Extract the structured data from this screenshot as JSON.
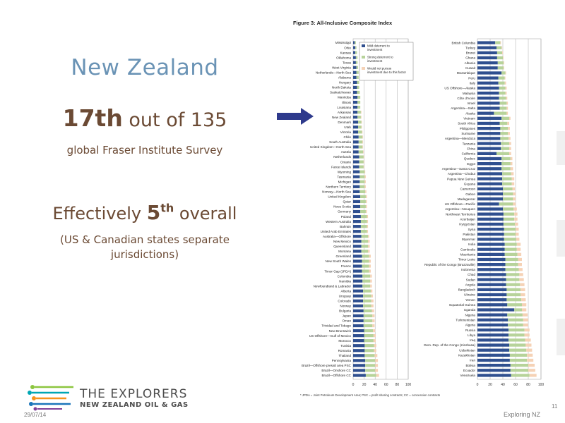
{
  "slide": {
    "title": "New Zealand",
    "rank_bold": "17th",
    "rank_rest": " out of 135",
    "survey": "global Fraser Institute Survey",
    "eff_pre": "Effectively ",
    "eff_num": "5",
    "eff_sup": "th",
    "eff_post": " overall",
    "note1": "(US & Canadian states separate",
    "note2": "jurisdictions)",
    "brand_line1": "THE EXPLORERS",
    "brand_line2": "NEW ZEALAND OIL & GAS",
    "date": "29/07/14",
    "footer": "Exploring NZ",
    "page_number": "11"
  },
  "colors": {
    "title": "#6a93b5",
    "body_text": "#6b4a34",
    "arrow": "#2e3a8c",
    "mild": "#2f4f8f",
    "strong": "#b7d39a",
    "would_not": "#f5d2b6"
  },
  "chart_data": {
    "type": "bar",
    "orientation": "horizontal",
    "stacked": true,
    "title": "Figure 3: All-Inclusive Composite Index",
    "legend": [
      "Mild deterrent to investment",
      "Strong deterrent to investment",
      "Would not pursue investment due to this factor"
    ],
    "legend_position": "top-right",
    "xlim": [
      0,
      100
    ],
    "xticks": [
      "0",
      "20",
      "40",
      "60",
      "80",
      "100"
    ],
    "footnote": "* JPDA = Joint Petroleum Development Area; PSC = profit sharing contracts; CC = concession contracts",
    "panels": [
      {
        "categories": [
          "Mississippi",
          "Ohio",
          "Kansas",
          "Oklahoma",
          "Texas",
          "West Virginia",
          "Netherlands—North Sea",
          "Alabama",
          "Hungary",
          "North Dakota",
          "Saskatchewan",
          "Manitoba",
          "Illinois",
          "Louisiana",
          "Arkansas",
          "New Zealand",
          "Denmark",
          "Utah",
          "Victoria",
          "Chile",
          "South Australia",
          "United Kingdom—North Sea",
          "Austria",
          "Netherlands",
          "Ontario",
          "Faroe Islands",
          "Wyoming",
          "Tasmania",
          "Michigan",
          "Northern Territory",
          "Norway—North Sea",
          "United Kingdom",
          "Qatar",
          "Nova Scotia",
          "Germany",
          "Poland",
          "Western Australia",
          "Bahrain",
          "United Arab Emirates",
          "Australia—Offshore",
          "New Mexico",
          "Queensland",
          "Montana",
          "Greenland",
          "New South Wales",
          "France",
          "Timor Gap (JPDA)",
          "Colombia",
          "Namibia",
          "Newfoundland & Labrador",
          "Alberta",
          "Uruguay",
          "Colorado",
          "Norway",
          "Bulgaria",
          "Japan",
          "Oman",
          "Trinidad and Tobago",
          "New Brunswick",
          "US Offshore—Gulf of Mexico",
          "Morocco",
          "Tunisia",
          "Romania",
          "Thailand",
          "Pennsylvania",
          "Brazil—Offshore presalt area PSC",
          "Brazil—Onshore CC",
          "Brazil—Offshore CC"
        ],
        "series": [
          {
            "name": "Mild deterrent to investment",
            "values": [
              3,
              4,
              4,
              5,
              5,
              6,
              6,
              6,
              7,
              7,
              7,
              8,
              8,
              8,
              8,
              8,
              9,
              9,
              9,
              10,
              10,
              10,
              10,
              11,
              11,
              11,
              12,
              12,
              12,
              12,
              12,
              13,
              13,
              13,
              13,
              14,
              14,
              14,
              14,
              15,
              15,
              15,
              15,
              16,
              16,
              16,
              16,
              17,
              17,
              17,
              18,
              18,
              18,
              18,
              19,
              19,
              19,
              19,
              20,
              20,
              20,
              21,
              21,
              21,
              22,
              22,
              22,
              23
            ]
          },
          {
            "name": "Strong deterrent to investment",
            "values": [
              2,
              2,
              3,
              3,
              3,
              3,
              4,
              4,
              4,
              4,
              5,
              5,
              5,
              5,
              6,
              6,
              6,
              6,
              7,
              7,
              7,
              7,
              8,
              8,
              8,
              8,
              9,
              9,
              9,
              9,
              10,
              10,
              10,
              10,
              10,
              11,
              11,
              11,
              11,
              12,
              12,
              12,
              12,
              13,
              13,
              13,
              13,
              14,
              14,
              14,
              14,
              15,
              15,
              15,
              15,
              16,
              16,
              16,
              16,
              17,
              17,
              17,
              17,
              18,
              18,
              18,
              18,
              19
            ]
          },
          {
            "name": "Would not pursue investment due to this factor",
            "values": [
              0,
              0,
              0,
              0,
              0,
              0,
              0,
              0,
              0,
              0,
              0,
              0,
              0,
              0,
              1,
              1,
              1,
              1,
              1,
              1,
              1,
              1,
              1,
              1,
              1,
              1,
              1,
              2,
              2,
              2,
              2,
              2,
              2,
              2,
              2,
              2,
              2,
              2,
              2,
              2,
              3,
              3,
              3,
              3,
              3,
              3,
              3,
              3,
              3,
              3,
              3,
              3,
              4,
              4,
              4,
              4,
              4,
              4,
              4,
              4,
              4,
              4,
              4,
              5,
              5,
              5,
              5,
              5
            ]
          }
        ]
      },
      {
        "categories": [
          "British Columbia",
          "Turkey",
          "Brunei",
          "Ghana",
          "Albania",
          "Kuwait",
          "Mozambique",
          "Peru",
          "Italy",
          "US Offshore—Alaska",
          "Malaysia",
          "Côte d'Ivoire",
          "Israel",
          "Argentina—Salta",
          "Alaska",
          "Vietnam",
          "South Africa",
          "Philippines",
          "Suriname",
          "Argentina—Mendoza",
          "Tanzania",
          "China",
          "California",
          "Quebec",
          "Egypt",
          "Argentina—Santa Cruz",
          "Argentina—Chubut",
          "Papua New Guinea",
          "Guyana",
          "Cameroon",
          "Gabon",
          "Madagascar",
          "US Offshore—Pacific",
          "Argentina—Neuquen",
          "Northwest Territories",
          "Azerbaijan",
          "Kyrgyzstan",
          "Syria",
          "Pakistan",
          "Myanmar",
          "India",
          "Cambodia",
          "Mauritania",
          "Timor Leste",
          "Republic of the Congo (Brazzaville)",
          "Indonesia",
          "Chad",
          "Sudan",
          "Angola",
          "Bangladesh",
          "Ukraine",
          "Yemen",
          "Equatorial Guinea",
          "Uganda",
          "Nigeria",
          "Turkmenistan",
          "Algeria",
          "Russia",
          "Libya",
          "Iraq",
          "Dem. Rep. of the Congo (Kinshasa)",
          "Uzbekistan",
          "Kazakhstan",
          "Iran",
          "Bolivia",
          "Ecuador",
          "Venezuela"
        ],
        "series": [
          {
            "name": "Mild deterrent to investment",
            "values": [
              28,
              30,
              31,
              31,
              32,
              32,
              38,
              33,
              33,
              34,
              34,
              34,
              35,
              35,
              26,
              38,
              35,
              36,
              36,
              36,
              37,
              37,
              30,
              38,
              38,
              38,
              39,
              39,
              39,
              40,
              40,
              40,
              34,
              40,
              41,
              41,
              41,
              42,
              42,
              42,
              43,
              43,
              43,
              44,
              44,
              44,
              45,
              45,
              45,
              46,
              46,
              46,
              47,
              58,
              47,
              48,
              48,
              49,
              49,
              49,
              50,
              50,
              51,
              51,
              52,
              52,
              53
            ]
          },
          {
            "name": "Strong deterrent to investment",
            "values": [
              8,
              8,
              8,
              9,
              9,
              9,
              6,
              10,
              10,
              10,
              10,
              11,
              11,
              11,
              20,
              12,
              12,
              12,
              12,
              13,
              13,
              13,
              20,
              14,
              14,
              14,
              14,
              15,
              15,
              15,
              16,
              16,
              22,
              17,
              17,
              17,
              18,
              18,
              18,
              19,
              19,
              19,
              20,
              20,
              20,
              21,
              21,
              21,
              22,
              22,
              22,
              23,
              23,
              12,
              24,
              24,
              24,
              25,
              25,
              26,
              26,
              27,
              27,
              27,
              28,
              28,
              29
            ]
          },
          {
            "name": "Would not pursue investment due to this factor",
            "values": [
              1,
              1,
              1,
              1,
              1,
              1,
              1,
              1,
              2,
              2,
              2,
              2,
              2,
              2,
              2,
              2,
              3,
              3,
              3,
              3,
              3,
              3,
              3,
              3,
              3,
              4,
              4,
              4,
              4,
              4,
              4,
              4,
              4,
              5,
              5,
              5,
              5,
              5,
              5,
              5,
              6,
              6,
              6,
              6,
              6,
              6,
              6,
              7,
              7,
              7,
              7,
              7,
              7,
              7,
              8,
              8,
              8,
              8,
              8,
              9,
              9,
              9,
              9,
              10,
              10,
              11,
              11
            ]
          }
        ]
      }
    ]
  }
}
